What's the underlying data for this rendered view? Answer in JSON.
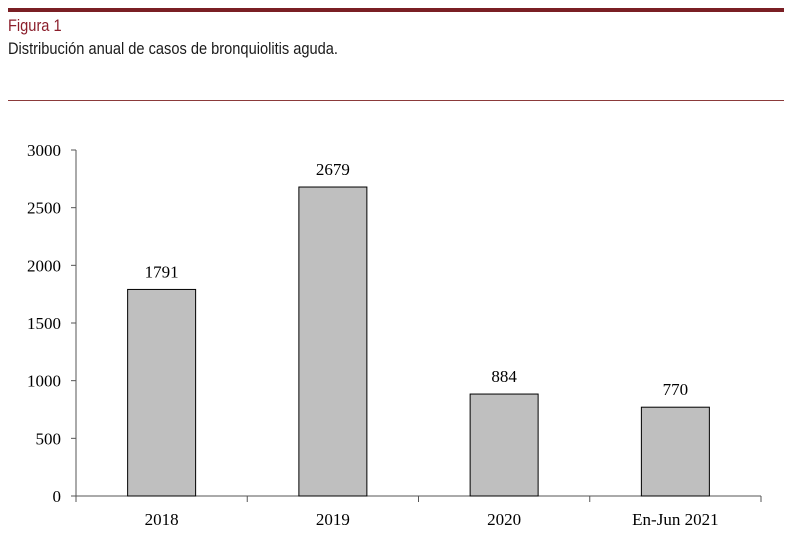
{
  "figure": {
    "label": "Figura 1",
    "title": "Distribución anual de casos de bronquiolitis aguda."
  },
  "colors": {
    "accent": "#7a1f24",
    "bar_fill": "#bfbfbf",
    "bar_stroke": "#000000"
  },
  "chart_data": {
    "type": "bar",
    "title": "Distribución anual de casos de bronquiolitis aguda.",
    "xlabel": "",
    "ylabel": "",
    "categories": [
      "2018",
      "2019",
      "2020",
      "En-Jun 2021"
    ],
    "values": [
      1791,
      2679,
      884,
      770
    ],
    "ylim": [
      0,
      3000
    ],
    "yticks": [
      0,
      500,
      1000,
      1500,
      2000,
      2500,
      3000
    ],
    "grid": false
  }
}
